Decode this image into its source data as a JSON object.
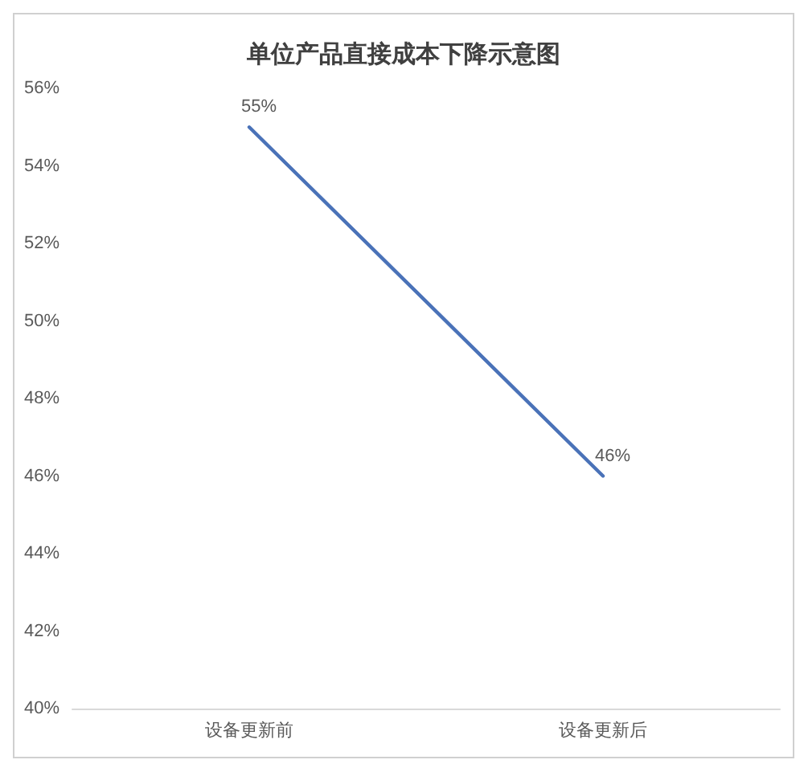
{
  "chart_data": {
    "type": "line",
    "title": "单位产品直接成本下降示意图",
    "categories": [
      "设备更新前",
      "设备更新后"
    ],
    "series": [
      {
        "color": "#4a72b8",
        "values": [
          55,
          46
        ],
        "value_labels": [
          "55%",
          "46%"
        ]
      }
    ],
    "ylim": [
      40,
      56
    ],
    "yticks": [
      {
        "value": 40,
        "label": "40%"
      },
      {
        "value": 42,
        "label": "42%"
      },
      {
        "value": 44,
        "label": "44%"
      },
      {
        "value": 46,
        "label": "46%"
      },
      {
        "value": 48,
        "label": "48%"
      },
      {
        "value": 50,
        "label": "50%"
      },
      {
        "value": 52,
        "label": "52%"
      },
      {
        "value": 54,
        "label": "54%"
      },
      {
        "value": 56,
        "label": "56%"
      }
    ],
    "grid": false,
    "marker": "none",
    "line_style": "solid"
  }
}
